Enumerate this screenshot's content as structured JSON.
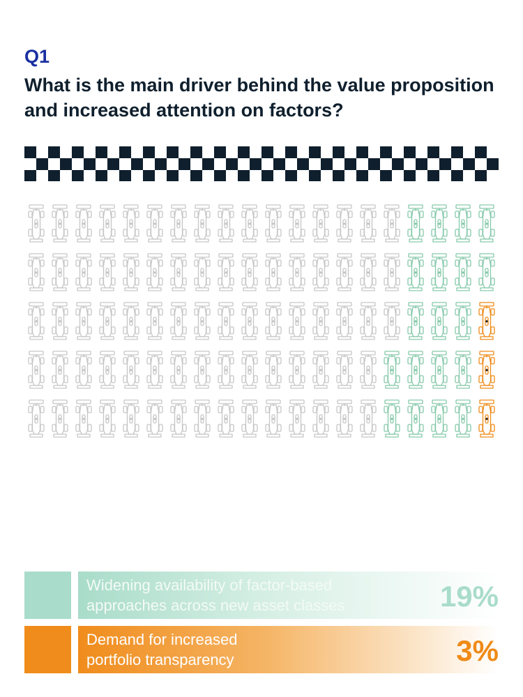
{
  "header": {
    "q_label": "Q1",
    "question": "What is the main driver behind the value proposition and increased attention on factors?"
  },
  "colors": {
    "checker_dark": "#0f1f2d",
    "icon_neutral": "#c6c6c6",
    "icon_green": "#86c9aa",
    "icon_orange": "#ef8a17"
  },
  "chart_data": {
    "type": "waffle",
    "icon": "race-car-icon",
    "total_icons": 100,
    "grid": {
      "rows": 5,
      "columns": 20
    },
    "series": [
      {
        "name": "Widening availability of factor-based approaches across new asset classes",
        "value": 19,
        "display": "19%",
        "color": "#86c9aa"
      },
      {
        "name": "Demand for increased portfolio transparency",
        "value": 3,
        "display": "3%",
        "color": "#ef8a17"
      }
    ],
    "legend_position": "bottom"
  },
  "legend": [
    {
      "label": "Widening availability of factor-based\napproaches across new asset classes",
      "value": "19%",
      "color": "#a9dcca",
      "value_color": "#a9dcca"
    },
    {
      "label": "Demand for increased\nportfolio transparency",
      "value": "3%",
      "color": "#f08c1c",
      "value_color": "#ef8a17"
    }
  ]
}
